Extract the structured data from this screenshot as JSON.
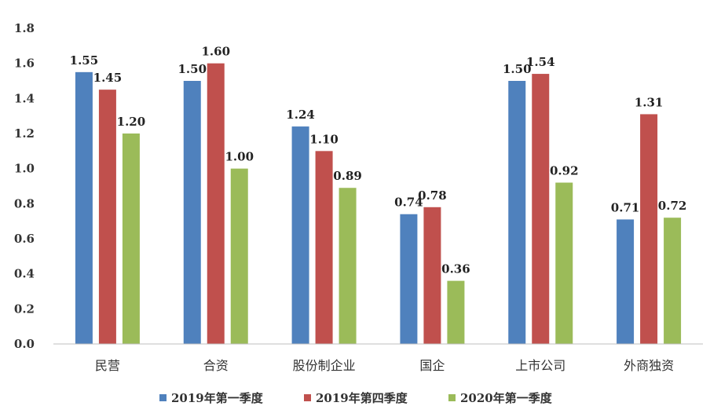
{
  "chart_data": {
    "type": "bar",
    "categories": [
      "民营",
      "合资",
      "股份制企业",
      "国企",
      "上市公司",
      "外商独资"
    ],
    "series": [
      {
        "name": "2019年第一季度",
        "color": "#4f81bd",
        "values": [
          1.55,
          1.5,
          1.24,
          0.74,
          1.5,
          0.71
        ]
      },
      {
        "name": "2019年第四季度",
        "color": "#c0504d",
        "values": [
          1.45,
          1.6,
          1.1,
          0.78,
          1.54,
          1.31
        ]
      },
      {
        "name": "2020年第一季度",
        "color": "#9bbb59",
        "values": [
          1.2,
          1.0,
          0.89,
          0.36,
          0.92,
          0.72
        ]
      }
    ],
    "value_labels": [
      [
        "1.55",
        "1.50",
        "1.24",
        "0.74",
        "1.50",
        "0.71"
      ],
      [
        "1.45",
        "1.60",
        "1.10",
        "0.78",
        "1.54",
        "1.31"
      ],
      [
        "1.20",
        "1.00",
        "0.89",
        "0.36",
        "0.92",
        "0.72"
      ]
    ],
    "yticks": [
      "0.0",
      "0.2",
      "0.4",
      "0.6",
      "0.8",
      "1.0",
      "1.2",
      "1.4",
      "1.6",
      "1.8"
    ],
    "ylim": [
      0,
      1.8
    ],
    "grid": false,
    "legend_position": "bottom"
  }
}
